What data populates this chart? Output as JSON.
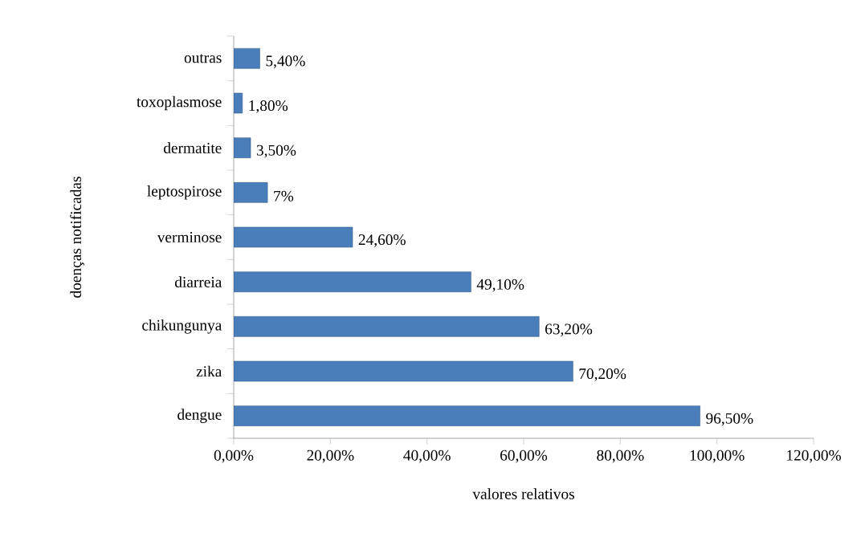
{
  "chart_data": {
    "type": "bar",
    "orientation": "horizontal",
    "xlabel": "valores relativos",
    "ylabel": "doenças notificadas",
    "categories": [
      "outras",
      "toxoplasmose",
      "dermatite",
      "leptospirose",
      "verminose",
      "diarreia",
      "chikungunya",
      "zika",
      "dengue"
    ],
    "values": [
      5.4,
      1.8,
      3.5,
      7,
      24.6,
      49.1,
      63.2,
      70.2,
      96.5
    ],
    "value_labels": [
      "5,40%",
      "1,80%",
      "3,50%",
      "7%",
      "24,60%",
      "49,10%",
      "63,20%",
      "70,20%",
      "96,50%"
    ],
    "color": "#4a7ebb",
    "xlim": [
      0,
      120
    ],
    "xticks": [
      {
        "value": 0,
        "label": "0,00%"
      },
      {
        "value": 20,
        "label": "20,00%"
      },
      {
        "value": 40,
        "label": "40,00%"
      },
      {
        "value": 60,
        "label": "60,00%"
      },
      {
        "value": 80,
        "label": "80,00%"
      },
      {
        "value": 100,
        "label": "100,00%"
      },
      {
        "value": 120,
        "label": "120,00%"
      }
    ]
  }
}
